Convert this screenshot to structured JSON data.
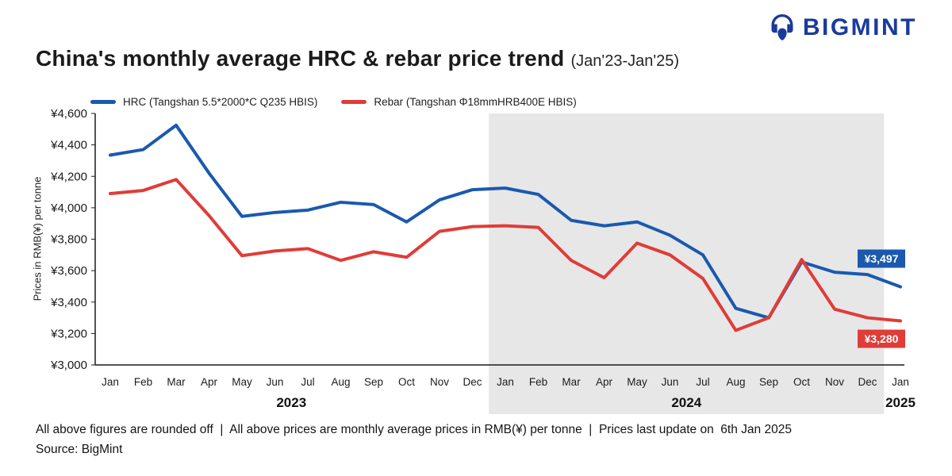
{
  "logo": {
    "text": "BIGMINT"
  },
  "header": {
    "title": "China's monthly average HRC & rebar price trend",
    "subtitle": "(Jan'23-Jan'25)"
  },
  "legend": [
    {
      "label": "HRC (Tangshan 5.5*2000*C Q235 HBIS)",
      "color": "#1a59ae"
    },
    {
      "label": "Rebar (Tangshan Φ18mmHRB400E HBIS)",
      "color": "#e03c38"
    }
  ],
  "colors": {
    "logo_blue": "#1a3a9c",
    "band_gray": "#e7e7e8",
    "axis": "#1a1a1a"
  },
  "chart_data": {
    "type": "line",
    "title": "China's monthly average HRC & rebar price trend (Jan'23-Jan'25)",
    "ylabel": "Prices in RMB(¥) per tonne",
    "ylim": [
      3000,
      4600
    ],
    "yticks": [
      3000,
      3200,
      3400,
      3600,
      3800,
      4000,
      4200,
      4400,
      4600
    ],
    "ytick_prefix": "¥",
    "grid": false,
    "legend_position": "top",
    "categories": [
      "Jan",
      "Feb",
      "Mar",
      "Apr",
      "May",
      "Jun",
      "Jul",
      "Aug",
      "Sep",
      "Oct",
      "Nov",
      "Dec",
      "Jan",
      "Feb",
      "Mar",
      "Apr",
      "May",
      "Jun",
      "Jul",
      "Aug",
      "Sep",
      "Oct",
      "Nov",
      "Dec",
      "Jan"
    ],
    "year_groups": [
      {
        "label": "2023",
        "start": 0,
        "end": 11,
        "shaded": false
      },
      {
        "label": "2024",
        "start": 12,
        "end": 23,
        "shaded": true
      },
      {
        "label": "2025",
        "start": 24,
        "end": 24,
        "shaded": false
      }
    ],
    "series": [
      {
        "name": "HRC (Tangshan 5.5*2000*C Q235 HBIS)",
        "short_name": "HRC",
        "color": "#1a59ae",
        "values": [
          4335,
          4370,
          4525,
          4220,
          3945,
          3970,
          3985,
          4035,
          4020,
          3910,
          4050,
          4115,
          4125,
          4085,
          3920,
          3885,
          3910,
          3825,
          3700,
          3360,
          3300,
          3655,
          3590,
          3575,
          3497
        ]
      },
      {
        "name": "Rebar (Tangshan Φ18mmHRB400E HBIS)",
        "short_name": "Rebar",
        "color": "#e03c38",
        "values": [
          4090,
          4110,
          4180,
          3950,
          3695,
          3725,
          3740,
          3665,
          3720,
          3685,
          3850,
          3880,
          3885,
          3875,
          3665,
          3555,
          3775,
          3700,
          3550,
          3220,
          3300,
          3670,
          3355,
          3300,
          3280
        ]
      }
    ],
    "end_labels": [
      {
        "text": "¥3,497",
        "color": "#1a59ae",
        "anchor_value": 3497,
        "offset_y": -47
      },
      {
        "text": "¥3,280",
        "color": "#e03c38",
        "anchor_value": 3280,
        "offset_y": 11
      }
    ]
  },
  "footer": {
    "line1": "All above figures are rounded off  |  All above prices are monthly average prices in RMB(¥) per tonne  |  Prices last update on  6th Jan 2025",
    "line2": "Source: BigMint"
  }
}
